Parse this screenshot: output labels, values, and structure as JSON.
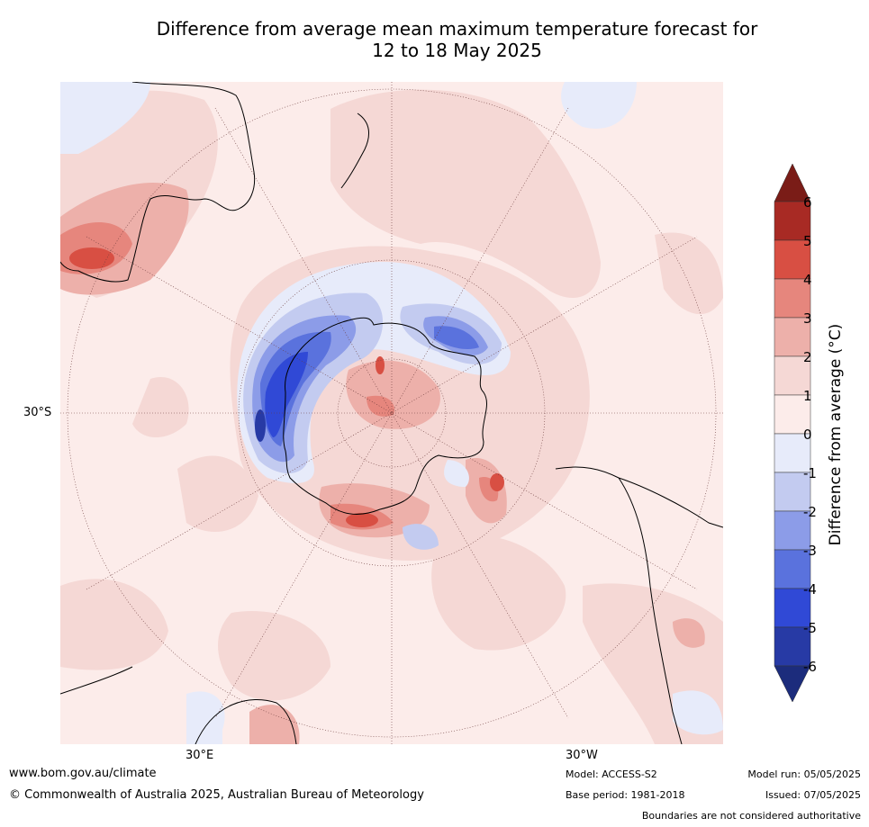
{
  "title_line1": "Difference from average mean maximum temperature forecast for",
  "title_line2": "12 to 18 May 2025",
  "map": {
    "lat_label": "30°S",
    "lon_label_left": "30°E",
    "lon_label_right": "30°W"
  },
  "colorbar": {
    "label": "Difference from average (°C)",
    "ticks": [
      "6",
      "5",
      "4",
      "3",
      "2",
      "1",
      "0",
      "-1",
      "-2",
      "-3",
      "-4",
      "-5",
      "-6"
    ],
    "colors": {
      "above_max": "#7a1c17",
      "5_6": "#a82a24",
      "4_5": "#d84f43",
      "3_4": "#e6867d",
      "2_3": "#edb0aa",
      "1_2": "#f5d8d5",
      "0_1": "#fcecea",
      "m1_0": "#e7ebfa",
      "m2_m1": "#c3cbf0",
      "m3_m2": "#8c9ce8",
      "m4_m3": "#5a72dd",
      "m5_m4": "#3049d6",
      "m6_m5": "#273aa5",
      "below_min": "#1c2c7c"
    }
  },
  "footer": {
    "website": "www.bom.gov.au/climate",
    "copyright": "© Commonwealth of Australia 2025, Australian Bureau of Meteorology",
    "model": "Model: ACCESS-S2",
    "base_period": "Base period: 1981-2018",
    "model_run": "Model run: 05/05/2025",
    "issued": "Issued: 07/05/2025",
    "boundaries": "Boundaries are not considered authoritative"
  }
}
